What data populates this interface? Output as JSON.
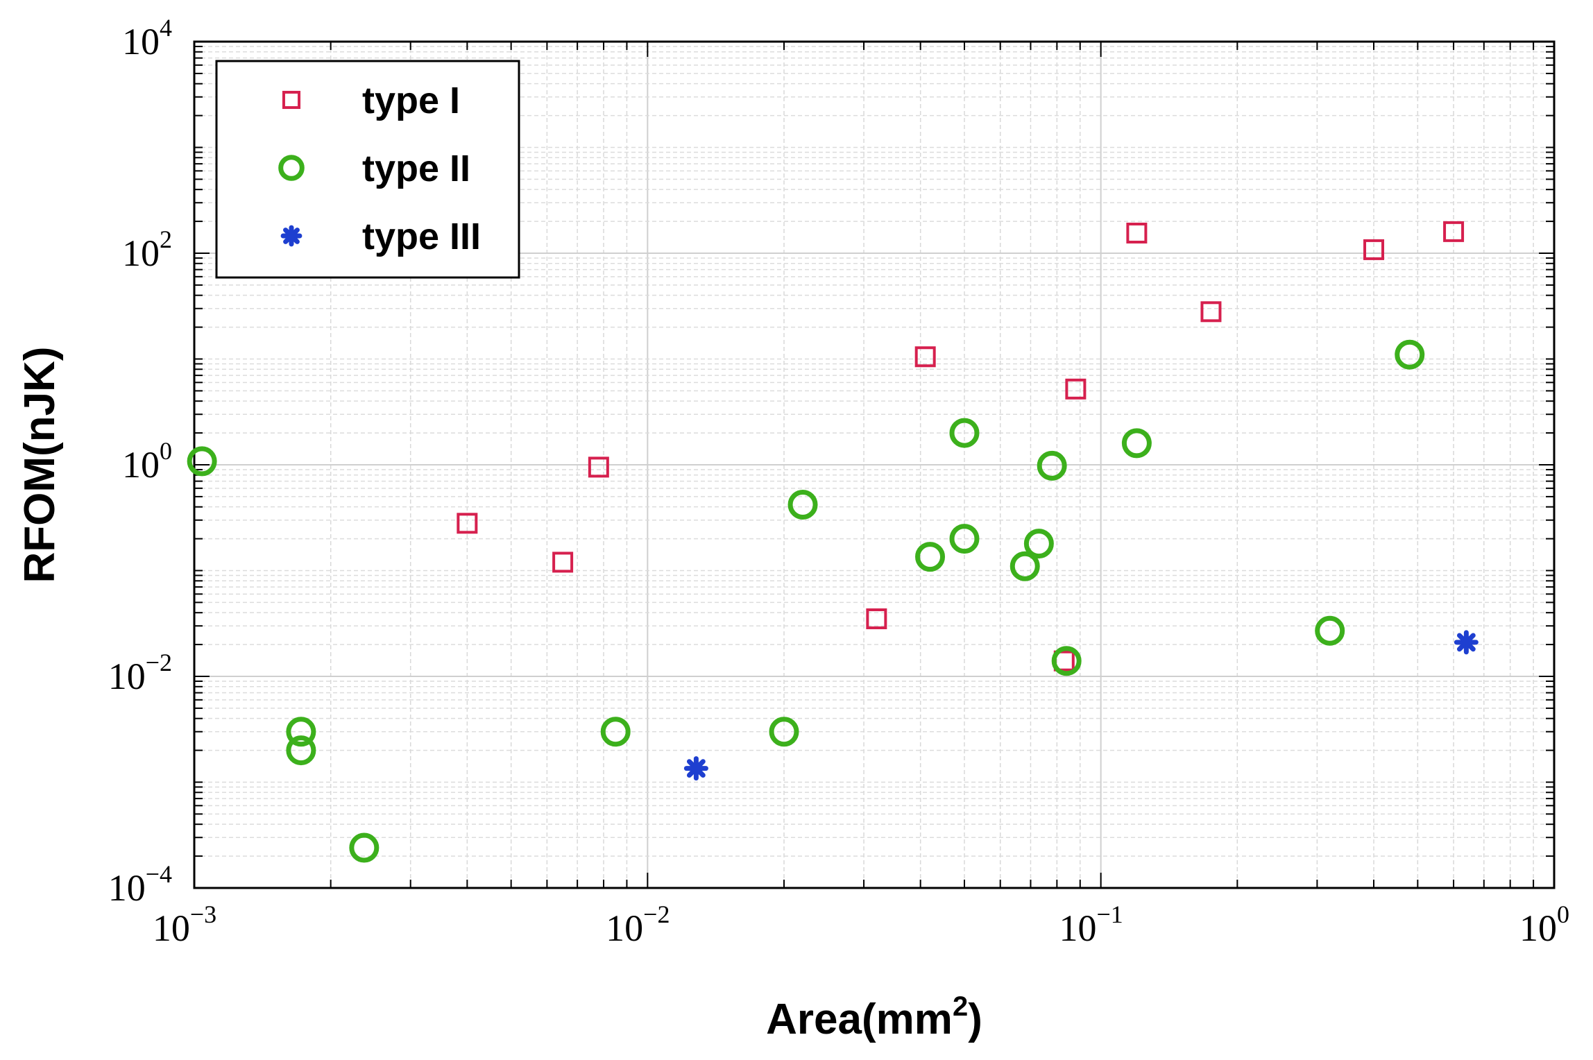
{
  "chart_data": {
    "type": "scatter",
    "x_scale": "log",
    "y_scale": "log",
    "xlabel": "Area(mm",
    "xlabel_superscript": "2",
    "xlabel_suffix": ")",
    "ylabel": "RFOM(nJK)",
    "xlim": [
      0.001,
      1
    ],
    "ylim": [
      0.0001,
      10000
    ],
    "grid": true,
    "legend_position": "top-left",
    "x_ticks": [
      {
        "base": "10",
        "exp": "−3"
      },
      {
        "base": "10",
        "exp": "−2"
      },
      {
        "base": "10",
        "exp": "−1"
      },
      {
        "base": "10",
        "exp": "0"
      }
    ],
    "y_ticks": [
      {
        "base": "10",
        "exp": "−4"
      },
      {
        "base": "10",
        "exp": "−2"
      },
      {
        "base": "10",
        "exp": "0"
      },
      {
        "base": "10",
        "exp": "2"
      },
      {
        "base": "10",
        "exp": "4"
      }
    ],
    "series": [
      {
        "name": "type I",
        "marker": "square",
        "color": "#d6204e",
        "points": [
          {
            "x": 0.004,
            "y": 0.28
          },
          {
            "x": 0.0065,
            "y": 0.12
          },
          {
            "x": 0.0078,
            "y": 0.95
          },
          {
            "x": 0.032,
            "y": 0.035
          },
          {
            "x": 0.041,
            "y": 10.5
          },
          {
            "x": 0.083,
            "y": 0.014
          },
          {
            "x": 0.088,
            "y": 5.2
          },
          {
            "x": 0.12,
            "y": 155
          },
          {
            "x": 0.175,
            "y": 28
          },
          {
            "x": 0.4,
            "y": 108
          },
          {
            "x": 0.6,
            "y": 160
          }
        ]
      },
      {
        "name": "type II",
        "marker": "circle",
        "color": "#3cb01c",
        "points": [
          {
            "x": 0.00104,
            "y": 1.08
          },
          {
            "x": 0.00172,
            "y": 0.003
          },
          {
            "x": 0.00172,
            "y": 0.002
          },
          {
            "x": 0.00237,
            "y": 0.00024
          },
          {
            "x": 0.0085,
            "y": 0.003
          },
          {
            "x": 0.02,
            "y": 0.003
          },
          {
            "x": 0.022,
            "y": 0.42
          },
          {
            "x": 0.042,
            "y": 0.135
          },
          {
            "x": 0.05,
            "y": 2.0
          },
          {
            "x": 0.05,
            "y": 0.2
          },
          {
            "x": 0.068,
            "y": 0.11
          },
          {
            "x": 0.073,
            "y": 0.18
          },
          {
            "x": 0.078,
            "y": 0.98
          },
          {
            "x": 0.084,
            "y": 0.014
          },
          {
            "x": 0.12,
            "y": 1.6
          },
          {
            "x": 0.32,
            "y": 0.027
          },
          {
            "x": 0.48,
            "y": 11
          }
        ]
      },
      {
        "name": "type III",
        "marker": "asterisk",
        "color": "#1e3fd0",
        "points": [
          {
            "x": 0.0128,
            "y": 0.00135
          },
          {
            "x": 0.64,
            "y": 0.021
          }
        ]
      }
    ]
  }
}
